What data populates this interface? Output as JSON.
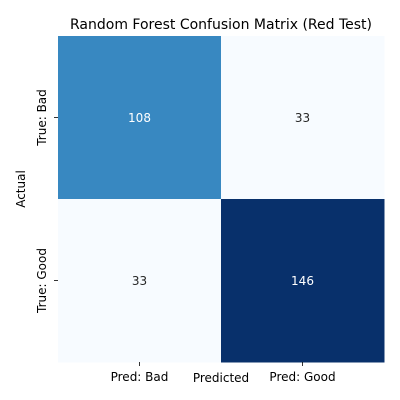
{
  "chart_data": {
    "type": "heatmap",
    "title": "Random Forest Confusion Matrix (Red Test)",
    "xlabel": "Predicted",
    "ylabel": "Actual",
    "x_categories": [
      "Pred: Bad",
      "Pred: Good"
    ],
    "y_categories": [
      "True: Bad",
      "True: Good"
    ],
    "values": [
      [
        108,
        33
      ],
      [
        33,
        146
      ]
    ],
    "colormap": "Blues",
    "value_range": [
      33,
      146
    ],
    "colorbar": false,
    "grid": false
  }
}
